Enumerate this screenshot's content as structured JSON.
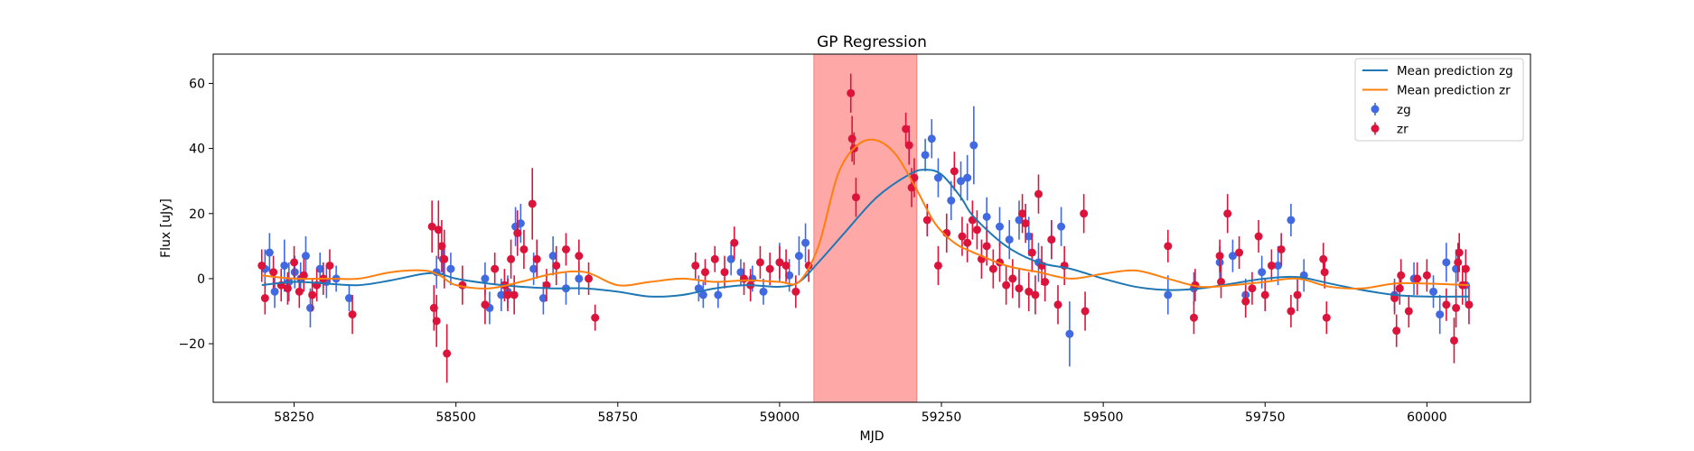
{
  "chart_data": {
    "type": "scatter",
    "title": "GP Regression",
    "xlabel": "MJD",
    "ylabel": "Flux [uJy]",
    "xlim": [
      58125,
      60160
    ],
    "ylim": [
      -38,
      69
    ],
    "xticks": [
      58250,
      58500,
      58750,
      59000,
      59250,
      59500,
      59750,
      60000
    ],
    "yticks": [
      -20,
      0,
      20,
      40,
      60
    ],
    "grid": false,
    "legend_position": "top-right",
    "shaded_region": {
      "x0": 59053,
      "x1": 59212,
      "color": "#ffa8a8"
    },
    "colors": {
      "mean_zg": "#1f77b4",
      "mean_zr": "#ff7f0e",
      "zg": "#4169e1",
      "zr": "#dc143c"
    },
    "legend": [
      {
        "label": "Mean prediction zg",
        "kind": "line",
        "color": "#1f77b4"
      },
      {
        "label": "Mean prediction zr",
        "kind": "line",
        "color": "#ff7f0e"
      },
      {
        "label": "zg",
        "kind": "errorbar",
        "color": "#4169e1"
      },
      {
        "label": "zr",
        "kind": "errorbar",
        "color": "#dc143c"
      }
    ],
    "series": [
      {
        "name": "Mean prediction zg",
        "kind": "line",
        "x": [
          58200,
          58250,
          58300,
          58350,
          58400,
          58450,
          58475,
          58500,
          58550,
          58600,
          58650,
          58700,
          58750,
          58800,
          58850,
          58900,
          58950,
          59000,
          59030,
          59060,
          59100,
          59150,
          59200,
          59225,
          59250,
          59280,
          59300,
          59350,
          59400,
          59450,
          59500,
          59550,
          59600,
          59650,
          59700,
          59750,
          59800,
          59850,
          59900,
          59950,
          60000,
          60065
        ],
        "y": [
          -2,
          -1,
          -1.5,
          -2,
          -0.5,
          1.5,
          1.5,
          0,
          -1.5,
          -2.5,
          -3,
          -3,
          -4,
          -5.5,
          -5,
          -3,
          -2,
          -2.5,
          -1,
          5,
          14,
          25,
          32,
          33.5,
          32,
          25,
          19,
          10,
          5,
          3,
          0,
          -2.5,
          -3.5,
          -3,
          -1.5,
          0,
          0.5,
          -1.5,
          -3.5,
          -5,
          -5.5,
          -5.5
        ]
      },
      {
        "name": "Mean prediction zr",
        "kind": "line",
        "x": [
          58200,
          58250,
          58300,
          58350,
          58400,
          58450,
          58475,
          58500,
          58550,
          58600,
          58650,
          58700,
          58750,
          58800,
          58850,
          58900,
          58950,
          59000,
          59030,
          59060,
          59090,
          59120,
          59150,
          59180,
          59210,
          59240,
          59270,
          59300,
          59350,
          59400,
          59450,
          59500,
          59550,
          59600,
          59650,
          59700,
          59750,
          59800,
          59850,
          59900,
          59950,
          60000,
          60065
        ],
        "y": [
          1,
          0,
          0,
          0,
          2,
          2.5,
          1,
          -2,
          -3,
          -1,
          1.5,
          2,
          -2,
          -1,
          0,
          -1,
          -0.5,
          -1,
          -1,
          10,
          32,
          41,
          42.5,
          38,
          28,
          17,
          11,
          8,
          4,
          2,
          0,
          1.5,
          2.5,
          0,
          -2.5,
          -2,
          -1,
          0,
          -2.5,
          -3,
          -1.5,
          -1.5,
          -2
        ]
      },
      {
        "name": "zg",
        "kind": "errorbar",
        "x": [
          58205,
          58212,
          58220,
          58235,
          58242,
          58251,
          58260,
          58268,
          58275,
          58290,
          58300,
          58315,
          58335,
          58470,
          58480,
          58492,
          58545,
          58552,
          58570,
          58580,
          58592,
          58600,
          58620,
          58635,
          58650,
          58670,
          58690,
          58875,
          58882,
          58905,
          58925,
          58940,
          58958,
          58975,
          59000,
          59015,
          59030,
          59040,
          59225,
          59235,
          59245,
          59265,
          59280,
          59290,
          59300,
          59320,
          59340,
          59355,
          59370,
          59385,
          59400,
          59420,
          59435,
          59448,
          59600,
          59640,
          59680,
          59700,
          59720,
          59745,
          59770,
          59790,
          59810,
          59950,
          59980,
          60010,
          60020,
          60030,
          60045,
          60060
        ],
        "y": [
          3,
          8,
          -4,
          4,
          -1,
          2,
          0,
          7,
          -9,
          3,
          -1,
          0,
          -6,
          2,
          6,
          3,
          0,
          -9,
          -5,
          -4,
          16,
          17,
          3,
          -6,
          7,
          -3,
          0,
          -3,
          -5,
          -5,
          6,
          2,
          0,
          -4,
          5,
          1,
          7,
          11,
          38,
          43,
          31,
          24,
          30,
          31,
          41,
          19,
          16,
          12,
          18,
          13,
          5,
          12,
          16,
          -17,
          -5,
          -3,
          5,
          7,
          -5,
          2,
          4,
          18,
          1,
          -5,
          0,
          -4,
          -11,
          5,
          3,
          -2
        ],
        "err": [
          6,
          6,
          5,
          8,
          6,
          5,
          5,
          6,
          6,
          5,
          5,
          4,
          4,
          5,
          5,
          5,
          5,
          5,
          5,
          5,
          6,
          6,
          5,
          5,
          6,
          5,
          5,
          4,
          4,
          4,
          5,
          4,
          4,
          4,
          6,
          5,
          6,
          6,
          5,
          6,
          6,
          6,
          6,
          7,
          12,
          6,
          6,
          6,
          6,
          6,
          6,
          6,
          6,
          10,
          6,
          5,
          5,
          5,
          5,
          5,
          6,
          5,
          5,
          5,
          5,
          5,
          6,
          6,
          6,
          6
        ]
      },
      {
        "name": "zr",
        "kind": "errorbar",
        "x": [
          58200,
          58205,
          58218,
          58230,
          58240,
          58250,
          58258,
          58265,
          58278,
          58285,
          58295,
          58305,
          58340,
          58463,
          58466,
          58470,
          58473,
          58478,
          58482,
          58486,
          58510,
          58545,
          58560,
          58575,
          58580,
          58585,
          58590,
          58595,
          58605,
          58618,
          58625,
          58640,
          58655,
          58670,
          58690,
          58705,
          58715,
          58870,
          58885,
          58900,
          58915,
          58930,
          58945,
          58955,
          58970,
          58985,
          59000,
          59010,
          59025,
          59045,
          59110,
          59112,
          59115,
          59118,
          59195,
          59200,
          59204,
          59208,
          59228,
          59245,
          59258,
          59270,
          59282,
          59290,
          59298,
          59305,
          59312,
          59320,
          59330,
          59340,
          59350,
          59360,
          59370,
          59375,
          59380,
          59385,
          59390,
          59395,
          59400,
          59405,
          59410,
          59420,
          59430,
          59440,
          59470,
          59472,
          59600,
          59640,
          59642,
          59680,
          59682,
          59692,
          59710,
          59720,
          59730,
          59740,
          59750,
          59760,
          59775,
          59790,
          59800,
          59840,
          59842,
          59845,
          59950,
          59953,
          59958,
          59960,
          59972,
          59985,
          60000,
          60030,
          60042,
          60045,
          60048,
          60050,
          60055,
          60060,
          60065
        ],
        "y": [
          4,
          -6,
          2,
          -2,
          -3,
          5,
          -4,
          1,
          -5,
          -2,
          0,
          4,
          -11,
          16,
          -9,
          -13,
          15,
          10,
          6,
          -23,
          -2,
          -8,
          3,
          -2,
          -5,
          6,
          -5,
          14,
          9,
          23,
          6,
          -2,
          4,
          9,
          7,
          0,
          -12,
          4,
          2,
          6,
          2,
          11,
          0,
          -2,
          5,
          3,
          5,
          4,
          -4,
          4,
          57,
          43,
          40,
          25,
          46,
          41,
          28,
          31,
          18,
          4,
          14,
          33,
          13,
          11,
          18,
          15,
          6,
          10,
          3,
          5,
          -2,
          0,
          -3,
          20,
          17,
          -4,
          8,
          -5,
          26,
          4,
          -1,
          12,
          -8,
          4,
          20,
          -10,
          10,
          -12,
          -2,
          7,
          -1,
          20,
          8,
          -7,
          -3,
          13,
          -5,
          4,
          9,
          -10,
          -5,
          6,
          2,
          -12,
          -6,
          -16,
          -3,
          1,
          -10,
          0,
          1,
          -8,
          -19,
          -9,
          5,
          8,
          -2,
          3,
          -8
        ],
        "err": [
          5,
          5,
          5,
          5,
          5,
          5,
          5,
          5,
          5,
          5,
          5,
          5,
          6,
          8,
          7,
          8,
          9,
          8,
          9,
          9,
          6,
          6,
          5,
          5,
          5,
          6,
          6,
          7,
          6,
          11,
          6,
          5,
          6,
          5,
          5,
          5,
          4,
          4,
          4,
          4,
          5,
          5,
          5,
          5,
          5,
          5,
          5,
          5,
          5,
          5,
          6,
          7,
          5,
          6,
          5,
          6,
          6,
          6,
          5,
          6,
          6,
          6,
          6,
          6,
          6,
          6,
          6,
          6,
          6,
          6,
          6,
          6,
          6,
          6,
          6,
          6,
          6,
          6,
          6,
          6,
          6,
          6,
          6,
          6,
          6,
          6,
          5,
          5,
          5,
          5,
          5,
          6,
          5,
          5,
          5,
          5,
          5,
          5,
          5,
          5,
          5,
          5,
          5,
          5,
          5,
          5,
          5,
          5,
          5,
          5,
          5,
          5,
          7,
          6,
          6,
          6,
          6,
          6,
          6
        ]
      }
    ]
  }
}
